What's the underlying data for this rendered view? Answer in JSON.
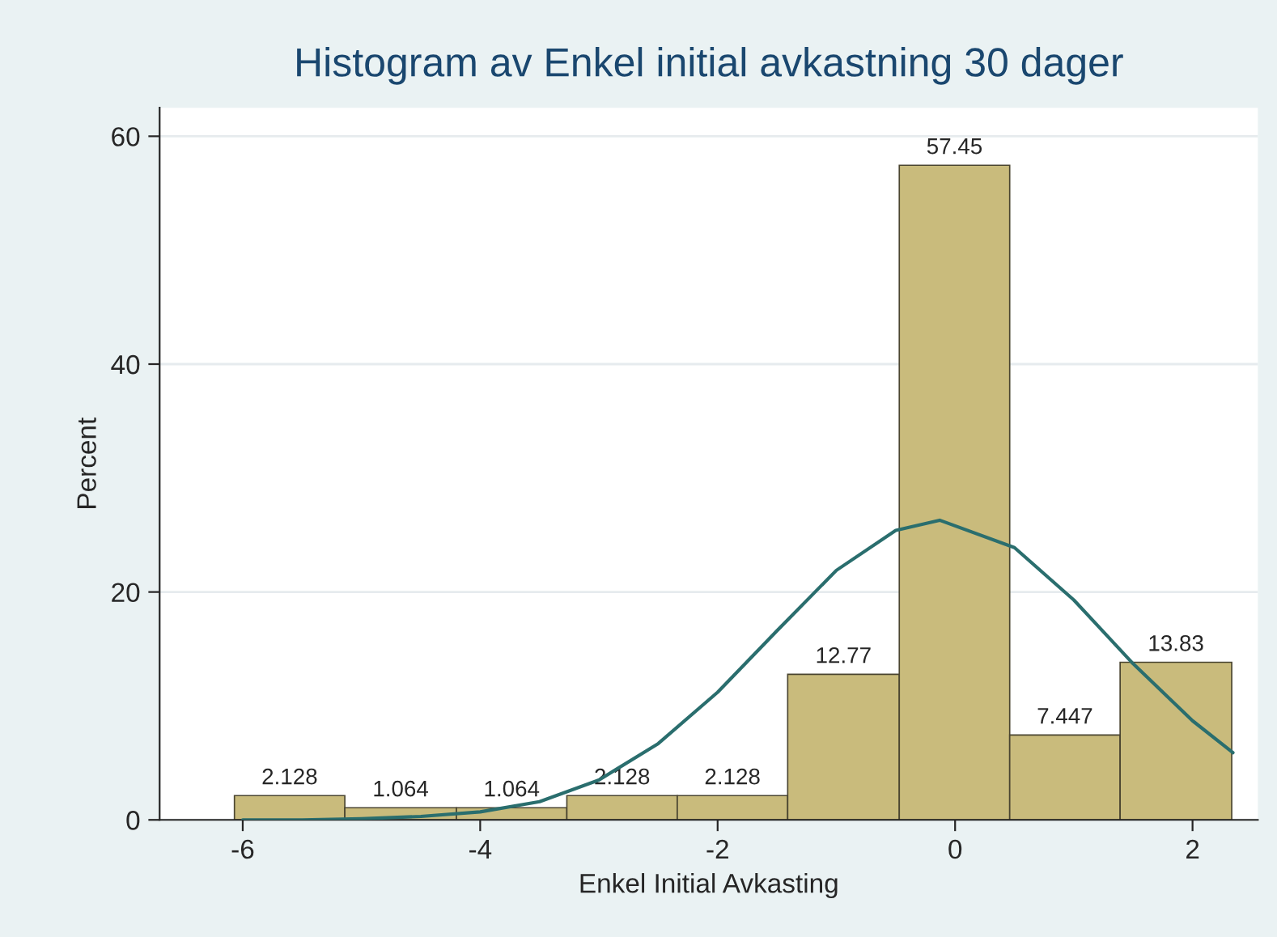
{
  "chart_data": {
    "type": "histogram",
    "title": "Histogram av Enkel initial avkastning 30 dager",
    "xlabel": "Enkel Initial Avkasting",
    "ylabel": "Percent",
    "bins": [
      -6.07,
      -5.14,
      -4.2,
      -3.27,
      -2.34,
      -1.41,
      -0.47,
      0.46,
      1.39,
      2.33
    ],
    "values": [
      2.128,
      1.064,
      1.064,
      2.128,
      2.128,
      12.77,
      57.45,
      7.447,
      13.83
    ],
    "color": "#c9bb7c",
    "value_labels": [
      "2.128",
      "1.064",
      "1.064",
      "2.128",
      "2.128",
      "12.77",
      "57.45",
      "7.447",
      "13.83"
    ],
    "series": [
      {
        "type": "line",
        "color": "#2a6e6e",
        "x": [
          -6,
          -5.5,
          -5,
          -4.5,
          -4,
          -3.5,
          -3,
          -2.5,
          -2,
          -1.5,
          -1,
          -0.5,
          -0.13,
          0.5,
          1,
          1.5,
          2,
          2.34
        ],
        "values": [
          0.0,
          0.0,
          0.1,
          0.3,
          0.7,
          1.6,
          3.5,
          6.7,
          11.2,
          16.6,
          21.9,
          25.4,
          26.3,
          23.9,
          19.3,
          13.7,
          8.7,
          5.9
        ]
      }
    ],
    "xlim": [
      -6.7,
      2.55
    ],
    "ylim": [
      0,
      62.5
    ],
    "xticks": [
      -6,
      -4,
      -2,
      0,
      2
    ],
    "yticks": [
      0,
      20,
      40,
      60
    ],
    "grid": "y"
  }
}
